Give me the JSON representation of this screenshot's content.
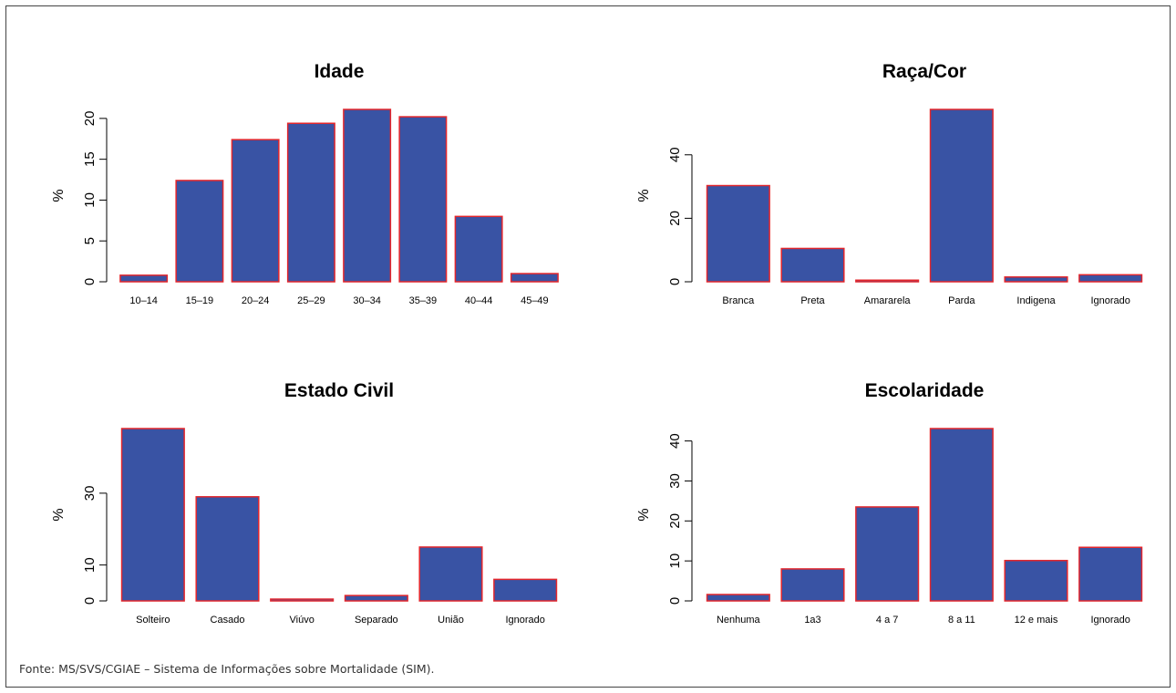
{
  "colors": {
    "bar_fill": "#3953a4",
    "bar_stroke": "#e3262c",
    "axis": "#000000"
  },
  "source": "Fonte: MS/SVS/CGIAE – Sistema de Informações sobre Mortalidade (SIM).",
  "chart_data": [
    {
      "type": "bar",
      "title": "Idade",
      "ylabel": "%",
      "categories": [
        "10–14",
        "15–19",
        "20–24",
        "25–29",
        "30–34",
        "35–39",
        "40–44",
        "45–49"
      ],
      "values": [
        0.8,
        12.4,
        17.4,
        19.4,
        21.1,
        20.2,
        8.0,
        1.0
      ],
      "ylim": [
        0,
        21.1
      ],
      "yticks": [
        0,
        5,
        10,
        15,
        20
      ],
      "grid": false
    },
    {
      "type": "bar",
      "title": "Raça/Cor",
      "ylabel": "%",
      "categories": [
        "Branca",
        "Preta",
        "Amararela",
        "Parda",
        "Indigena",
        "Ignorado"
      ],
      "values": [
        30.3,
        10.5,
        0.5,
        54.3,
        1.5,
        2.2
      ],
      "ylim": [
        0,
        54.3
      ],
      "yticks": [
        0,
        20,
        40
      ],
      "grid": false
    },
    {
      "type": "bar",
      "title": "Estado Civil",
      "ylabel": "%",
      "categories": [
        "Solteiro",
        "Casado",
        "Viúvo",
        "Separado",
        "União",
        "Ignorado"
      ],
      "values": [
        48.0,
        29.0,
        0.5,
        1.5,
        15.0,
        6.0
      ],
      "ylim": [
        0,
        48.0
      ],
      "yticks": [
        0,
        10,
        30
      ],
      "grid": false
    },
    {
      "type": "bar",
      "title": "Escolaridade",
      "ylabel": "%",
      "categories": [
        "Nenhuma",
        "1a3",
        "4 a 7",
        "8 a 11",
        "12 e mais",
        "Ignorado"
      ],
      "values": [
        1.6,
        8.0,
        23.5,
        43.1,
        10.1,
        13.4
      ],
      "ylim": [
        0,
        43.1
      ],
      "yticks": [
        0,
        10,
        20,
        30,
        40
      ],
      "grid": false
    }
  ]
}
